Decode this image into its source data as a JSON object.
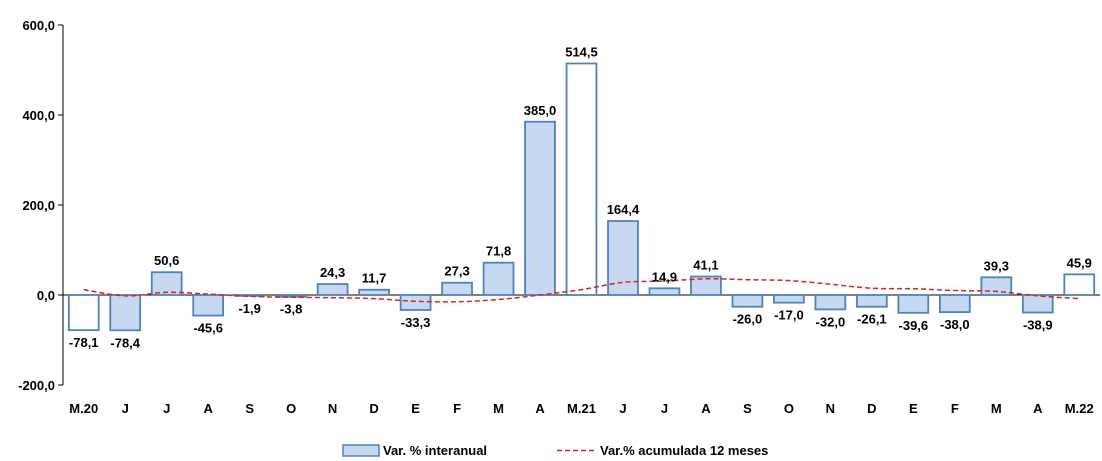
{
  "chart_data": {
    "type": "bar",
    "categories": [
      "M.20",
      "J",
      "J",
      "A",
      "S",
      "O",
      "N",
      "D",
      "E",
      "F",
      "M",
      "A",
      "M.21",
      "J",
      "J",
      "A",
      "S",
      "O",
      "N",
      "D",
      "E",
      "F",
      "M",
      "A",
      "M.22"
    ],
    "series": [
      {
        "name": "Var. % interanual",
        "type": "bar",
        "values": [
          -78.1,
          -78.4,
          50.6,
          -45.6,
          -1.9,
          -3.8,
          24.3,
          11.7,
          -33.3,
          27.3,
          71.8,
          385.0,
          514.5,
          164.4,
          14.9,
          41.1,
          -26.0,
          -17.0,
          -32.0,
          -26.1,
          -39.6,
          -38.0,
          39.3,
          -38.9,
          45.9
        ],
        "labels": [
          "-78,1",
          "-78,4",
          "50,6",
          "-45,6",
          "-1,9",
          "-3,8",
          "24,3",
          "11,7",
          "-33,3",
          "27,3",
          "71,8",
          "385,0",
          "514,5",
          "164,4",
          "14,9",
          "41,1",
          "-26,0",
          "-17,0",
          "-32,0",
          "-26,1",
          "-39,6",
          "-38,0",
          "39,3",
          "-38,9",
          "45,9"
        ],
        "highlighted": [
          0,
          12,
          24
        ],
        "fill": "#c6d9f1",
        "highlight_fill": "#ffffff",
        "stroke": "#4f81bd"
      },
      {
        "name": "Var.% acumulada 12 meses",
        "type": "line",
        "style": "dashed",
        "color": "#e0201c",
        "values": [
          12,
          -2,
          6,
          2,
          -3,
          -5,
          -6,
          -8,
          -14,
          -15,
          -10,
          0,
          12,
          28,
          31,
          36,
          34,
          32,
          24,
          15,
          14,
          10,
          8,
          -2,
          -8
        ]
      }
    ],
    "ylim": [
      -200,
      600
    ],
    "yticks": [
      -200,
      0,
      200,
      400,
      600
    ],
    "ytick_labels": [
      "-200,0",
      "0,0",
      "200,0",
      "400,0",
      "600,0"
    ],
    "grid": false,
    "legend": "bottom",
    "title": "",
    "xlabel": "",
    "ylabel": ""
  }
}
